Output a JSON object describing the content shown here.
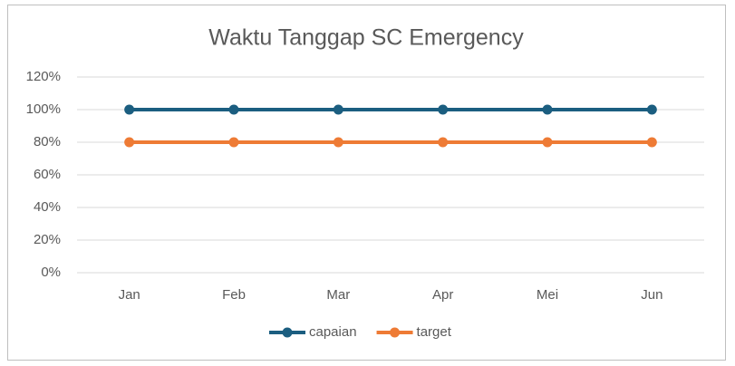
{
  "chart_data": {
    "type": "line",
    "title": "Waktu Tanggap SC Emergency",
    "categories": [
      "Jan",
      "Feb",
      "Mar",
      "Apr",
      "Mei",
      "Jun"
    ],
    "series": [
      {
        "name": "capaian",
        "color": "#1b5e80",
        "values": [
          100,
          100,
          100,
          100,
          100,
          100
        ]
      },
      {
        "name": "target",
        "color": "#ee7b35",
        "values": [
          80,
          80,
          80,
          80,
          80,
          80
        ]
      }
    ],
    "ylim": [
      0,
      120
    ],
    "yticks": [
      {
        "value": 0,
        "label": "0%"
      },
      {
        "value": 20,
        "label": "20%"
      },
      {
        "value": 40,
        "label": "40%"
      },
      {
        "value": 60,
        "label": "60%"
      },
      {
        "value": 80,
        "label": "80%"
      },
      {
        "value": 100,
        "label": "100%"
      },
      {
        "value": 120,
        "label": "120%"
      }
    ],
    "grid": true,
    "legend": "bottom"
  }
}
